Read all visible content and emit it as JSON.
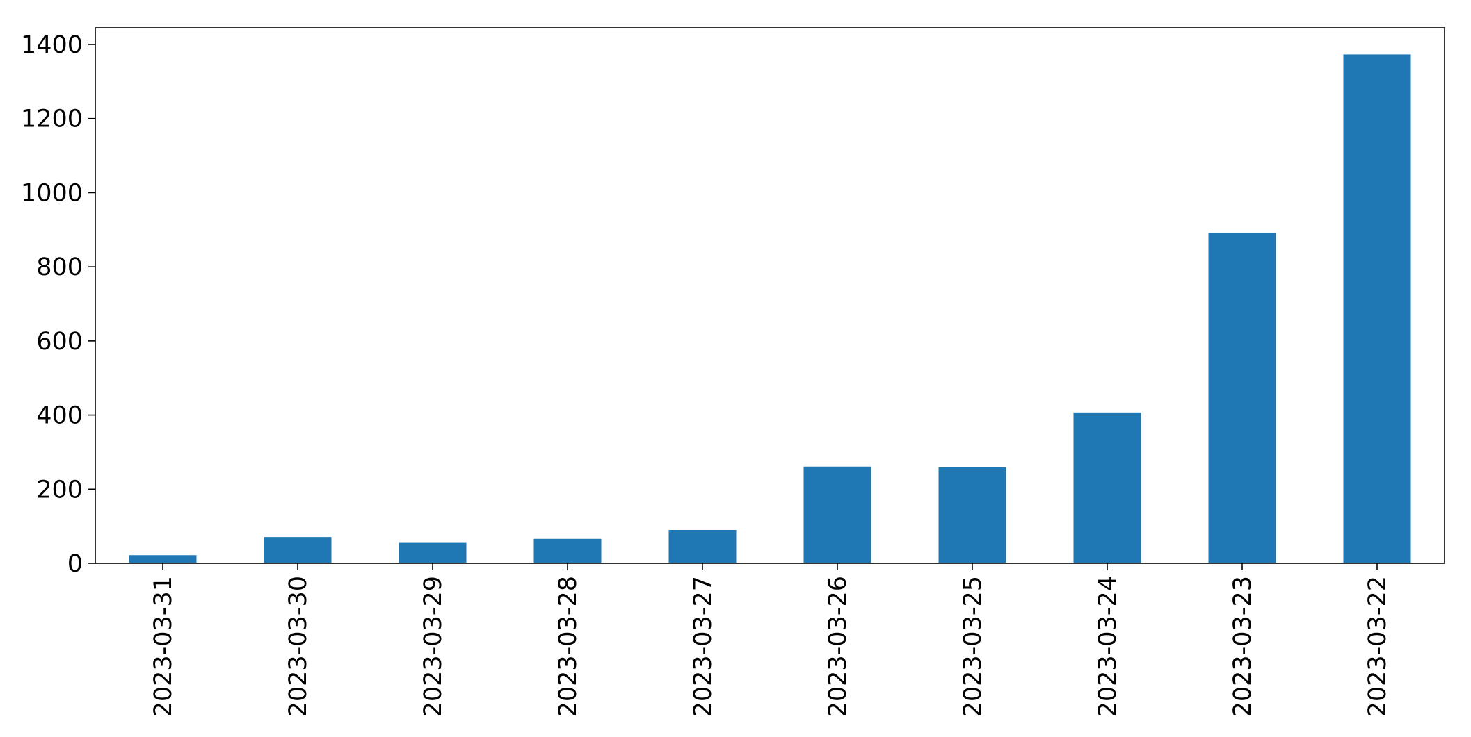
{
  "chart_data": {
    "type": "bar",
    "categories": [
      "2023-03-31",
      "2023-03-30",
      "2023-03-29",
      "2023-03-28",
      "2023-03-27",
      "2023-03-26",
      "2023-03-25",
      "2023-03-24",
      "2023-03-23",
      "2023-03-22"
    ],
    "values": [
      22,
      71,
      57,
      66,
      90,
      261,
      259,
      407,
      891,
      1373
    ],
    "title": "",
    "xlabel": "",
    "ylabel": "",
    "ylim": [
      0,
      1400
    ],
    "yticks": [
      0,
      200,
      400,
      600,
      800,
      1000,
      1200,
      1400
    ],
    "grid": false,
    "legend": "none",
    "bar_color": "#1f77b4"
  }
}
